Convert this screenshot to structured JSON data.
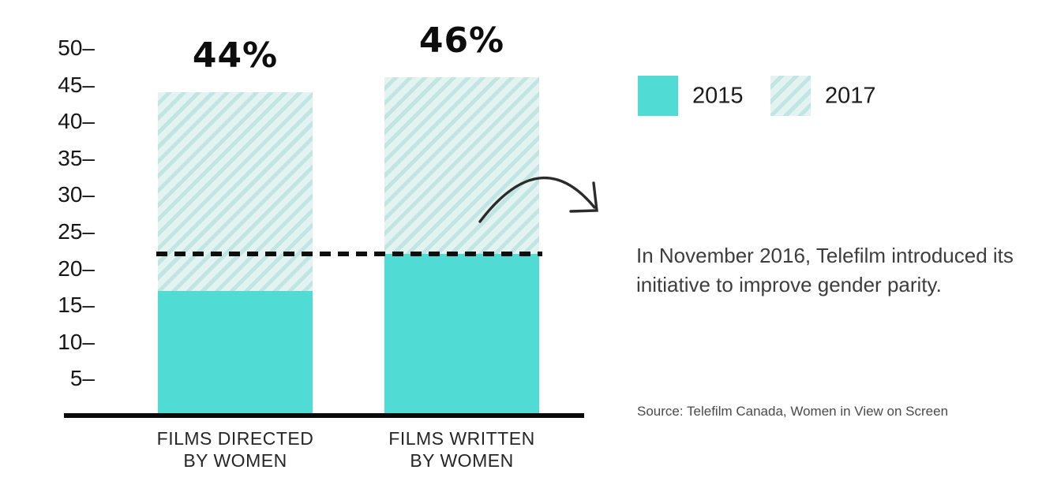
{
  "colors": {
    "teal_2015": "#50DBD4",
    "hatch_background": "#E3F3F1",
    "hatch_stripe": "#C0E5E2",
    "ink": "#0e0e0e"
  },
  "chart_data": {
    "type": "bar",
    "subtype": "grouped-overlay-comparison",
    "categories": [
      "FILMS DIRECTED\nBY WOMEN",
      "FILMS WRITTEN\nBY WOMEN"
    ],
    "series": [
      {
        "name": "2015",
        "style": "solid",
        "values": [
          17,
          22
        ]
      },
      {
        "name": "2017",
        "style": "hatched",
        "values": [
          44,
          46
        ]
      }
    ],
    "data_labels": [
      "44%",
      "46%"
    ],
    "reference_line": {
      "value": 22,
      "style": "dashed-black"
    },
    "ylim": [
      0,
      50
    ],
    "yticks": [
      5,
      10,
      15,
      20,
      25,
      30,
      35,
      40,
      45,
      50
    ],
    "tick_suffix": "–",
    "grid": false,
    "legend_position": "top-right",
    "title": "",
    "xlabel": "",
    "ylabel": ""
  },
  "legend": {
    "items": [
      {
        "label": "2015",
        "swatch": "solid-teal"
      },
      {
        "label": "2017",
        "swatch": "hatched"
      }
    ]
  },
  "annotation": {
    "text": "In November 2016, Telefilm introduced its initiative to improve gender parity.",
    "arrow": "curved-arrow-pointing-to-note"
  },
  "source": {
    "text": "Source: Telefilm Canada, Women in View on Screen"
  }
}
